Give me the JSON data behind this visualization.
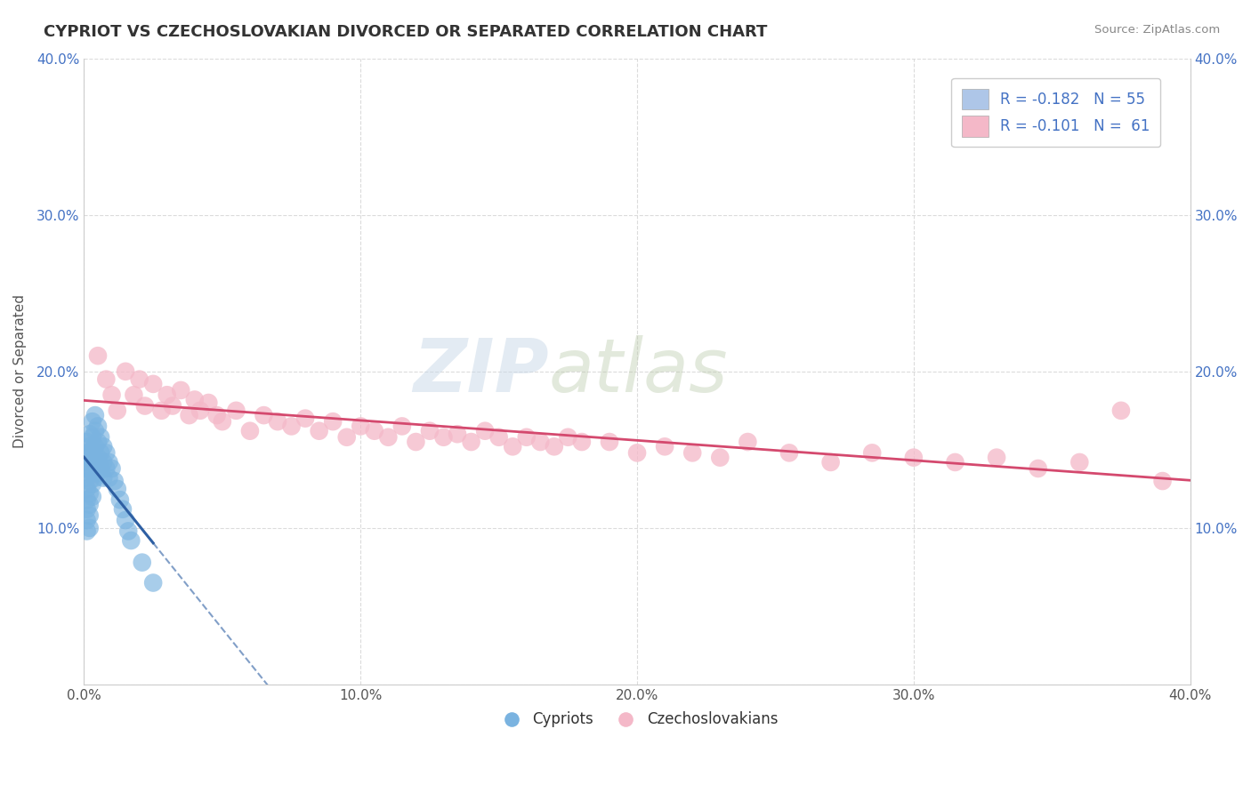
{
  "title": "CYPRIOT VS CZECHOSLOVAKIAN DIVORCED OR SEPARATED CORRELATION CHART",
  "source": "Source: ZipAtlas.com",
  "ylabel": "Divorced or Separated",
  "xlim": [
    0.0,
    0.4
  ],
  "ylim": [
    0.0,
    0.4
  ],
  "xtick_vals": [
    0.0,
    0.1,
    0.2,
    0.3,
    0.4
  ],
  "ytick_vals": [
    0.0,
    0.1,
    0.2,
    0.3,
    0.4
  ],
  "watermark_zip": "ZIP",
  "watermark_atlas": "atlas",
  "blue_scatter_color": "#7ab3e0",
  "pink_scatter_color": "#f4b8c8",
  "blue_line_color": "#2e5fa3",
  "pink_line_color": "#d4496e",
  "ref_line_color": "#b0c4d8",
  "cypriot_x": [
    0.001,
    0.001,
    0.001,
    0.001,
    0.001,
    0.001,
    0.001,
    0.001,
    0.001,
    0.001,
    0.002,
    0.002,
    0.002,
    0.002,
    0.002,
    0.002,
    0.002,
    0.002,
    0.002,
    0.003,
    0.003,
    0.003,
    0.003,
    0.003,
    0.003,
    0.003,
    0.004,
    0.004,
    0.004,
    0.004,
    0.004,
    0.005,
    0.005,
    0.005,
    0.005,
    0.006,
    0.006,
    0.006,
    0.007,
    0.007,
    0.007,
    0.008,
    0.008,
    0.009,
    0.009,
    0.01,
    0.011,
    0.012,
    0.013,
    0.014,
    0.015,
    0.016,
    0.017,
    0.021,
    0.025
  ],
  "cypriot_y": [
    0.155,
    0.148,
    0.142,
    0.138,
    0.132,
    0.125,
    0.118,
    0.112,
    0.105,
    0.098,
    0.16,
    0.152,
    0.145,
    0.138,
    0.13,
    0.122,
    0.115,
    0.108,
    0.1,
    0.168,
    0.158,
    0.15,
    0.142,
    0.135,
    0.128,
    0.12,
    0.172,
    0.162,
    0.152,
    0.142,
    0.132,
    0.165,
    0.155,
    0.145,
    0.135,
    0.158,
    0.148,
    0.138,
    0.152,
    0.142,
    0.132,
    0.148,
    0.138,
    0.142,
    0.132,
    0.138,
    0.13,
    0.125,
    0.118,
    0.112,
    0.105,
    0.098,
    0.092,
    0.078,
    0.065
  ],
  "czechoslovakian_x": [
    0.005,
    0.008,
    0.01,
    0.012,
    0.015,
    0.018,
    0.02,
    0.022,
    0.025,
    0.028,
    0.03,
    0.032,
    0.035,
    0.038,
    0.04,
    0.042,
    0.045,
    0.048,
    0.05,
    0.055,
    0.06,
    0.065,
    0.07,
    0.075,
    0.08,
    0.085,
    0.09,
    0.095,
    0.1,
    0.105,
    0.11,
    0.115,
    0.12,
    0.125,
    0.13,
    0.135,
    0.14,
    0.145,
    0.15,
    0.155,
    0.16,
    0.165,
    0.17,
    0.175,
    0.18,
    0.19,
    0.2,
    0.21,
    0.22,
    0.23,
    0.24,
    0.255,
    0.27,
    0.285,
    0.3,
    0.315,
    0.33,
    0.345,
    0.36,
    0.375,
    0.39
  ],
  "czechoslovakian_y": [
    0.21,
    0.195,
    0.185,
    0.175,
    0.2,
    0.185,
    0.195,
    0.178,
    0.192,
    0.175,
    0.185,
    0.178,
    0.188,
    0.172,
    0.182,
    0.175,
    0.18,
    0.172,
    0.168,
    0.175,
    0.162,
    0.172,
    0.168,
    0.165,
    0.17,
    0.162,
    0.168,
    0.158,
    0.165,
    0.162,
    0.158,
    0.165,
    0.155,
    0.162,
    0.158,
    0.16,
    0.155,
    0.162,
    0.158,
    0.152,
    0.158,
    0.155,
    0.152,
    0.158,
    0.155,
    0.155,
    0.148,
    0.152,
    0.148,
    0.145,
    0.155,
    0.148,
    0.142,
    0.148,
    0.145,
    0.142,
    0.145,
    0.138,
    0.142,
    0.175,
    0.13
  ]
}
